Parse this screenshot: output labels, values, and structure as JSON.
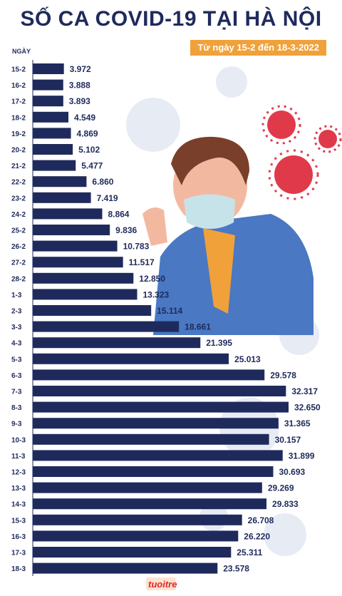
{
  "title": "SỐ CA COVID-19 TẠI HÀ NỘI",
  "subtitle": "Từ ngày 15-2 đến 18-3-2022",
  "logo": "tuoitre",
  "colors": {
    "bar": "#1f2a5c",
    "title": "#1f2a5c",
    "accent": "#f0a13a",
    "virus": "#e03a4a"
  },
  "chart_data": {
    "type": "bar",
    "orientation": "horizontal",
    "ylabel": "NGÀY",
    "xlabel": "",
    "xlim": [
      0,
      33000
    ],
    "grid": false,
    "categories": [
      "15-2",
      "16-2",
      "17-2",
      "18-2",
      "19-2",
      "20-2",
      "21-2",
      "22-2",
      "23-2",
      "24-2",
      "25-2",
      "26-2",
      "27-2",
      "28-2",
      "1-3",
      "2-3",
      "3-3",
      "4-3",
      "5-3",
      "6-3",
      "7-3",
      "8-3",
      "9-3",
      "10-3",
      "11-3",
      "12-3",
      "13-3",
      "14-3",
      "15-3",
      "16-3",
      "17-3",
      "18-3"
    ],
    "values": [
      3972,
      3888,
      3893,
      4549,
      4869,
      5102,
      5477,
      6860,
      7419,
      8864,
      9836,
      10783,
      11517,
      12850,
      13323,
      15114,
      18661,
      21395,
      25013,
      29578,
      32317,
      32650,
      31365,
      30157,
      31899,
      30693,
      29269,
      29833,
      26708,
      26220,
      25311,
      23578
    ],
    "labels": [
      "3.972",
      "3.888",
      "3.893",
      "4.549",
      "4.869",
      "5.102",
      "5.477",
      "6.860",
      "7.419",
      "8.864",
      "9.836",
      "10.783",
      "11.517",
      "12.850",
      "13.323",
      "15.114",
      "18.661",
      "21.395",
      "25.013",
      "29.578",
      "32.317",
      "32.650",
      "31.365",
      "30.157",
      "31.899",
      "30.693",
      "29.269",
      "29.833",
      "26.708",
      "26.220",
      "25.311",
      "23.578"
    ]
  }
}
